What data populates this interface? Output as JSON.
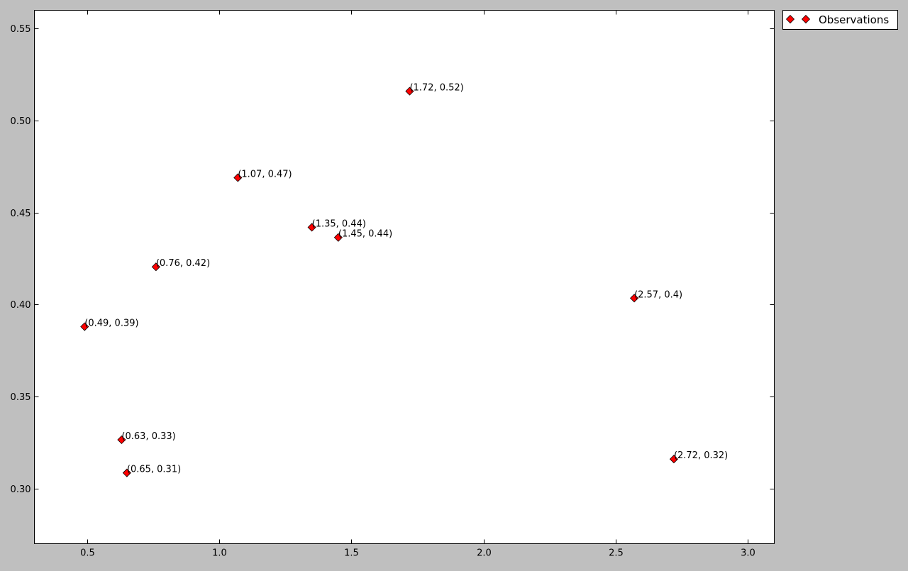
{
  "chart_data": {
    "type": "scatter",
    "title": "",
    "xlabel": "",
    "ylabel": "",
    "xlim": [
      0.3,
      3.1
    ],
    "ylim": [
      0.27,
      0.56
    ],
    "x_ticks": [
      0.5,
      1.0,
      1.5,
      2.0,
      2.5,
      3.0
    ],
    "x_tick_labels": [
      "0.5",
      "1.0",
      "1.5",
      "2.0",
      "2.5",
      "3.0"
    ],
    "y_ticks": [
      0.3,
      0.35,
      0.4,
      0.45,
      0.5,
      0.55
    ],
    "y_tick_labels": [
      "0.30",
      "0.35",
      "0.40",
      "0.45",
      "0.50",
      "0.55"
    ],
    "grid": false,
    "legend_position": "outside-top-right",
    "series": [
      {
        "name": "Observations",
        "marker": "diamond",
        "color": "#ff0000",
        "points": [
          {
            "x": 0.49,
            "y": 0.388,
            "label": "(0.49, 0.39)"
          },
          {
            "x": 0.63,
            "y": 0.3265,
            "label": "(0.63, 0.33)"
          },
          {
            "x": 0.65,
            "y": 0.3085,
            "label": "(0.65, 0.31)"
          },
          {
            "x": 0.76,
            "y": 0.4205,
            "label": "(0.76, 0.42)"
          },
          {
            "x": 1.07,
            "y": 0.469,
            "label": "(1.07, 0.47)"
          },
          {
            "x": 1.35,
            "y": 0.442,
            "label": "(1.35, 0.44)"
          },
          {
            "x": 1.45,
            "y": 0.4365,
            "label": "(1.45, 0.44)"
          },
          {
            "x": 1.72,
            "y": 0.516,
            "label": "(1.72, 0.52)"
          },
          {
            "x": 2.57,
            "y": 0.4035,
            "label": "(2.57, 0.4)"
          },
          {
            "x": 2.72,
            "y": 0.316,
            "label": "(2.72, 0.32)"
          }
        ]
      }
    ]
  },
  "legend": {
    "label": "Observations"
  },
  "colors": {
    "figure_background": "#bfbfbf",
    "plot_background": "#ffffff",
    "marker_fill": "#ff0000",
    "marker_edge": "#000000"
  }
}
